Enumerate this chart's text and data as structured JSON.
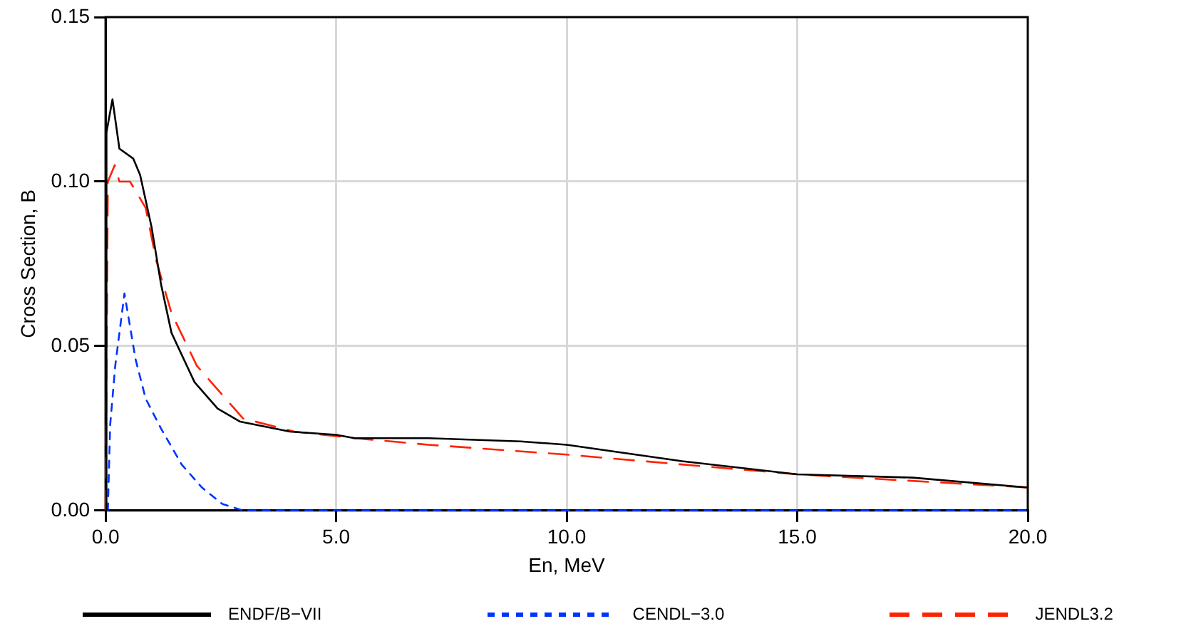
{
  "chart_data": {
    "type": "line",
    "xlabel": "En, MeV",
    "ylabel": "Cross Section, B",
    "xlim": [
      0,
      20
    ],
    "ylim": [
      0,
      0.15
    ],
    "xticks": [
      {
        "value": 0,
        "label": "0.0"
      },
      {
        "value": 5,
        "label": "5.0"
      },
      {
        "value": 10,
        "label": "10.0"
      },
      {
        "value": 15,
        "label": "15.0"
      },
      {
        "value": 20,
        "label": "20.0"
      }
    ],
    "yticks": [
      {
        "value": 0,
        "label": "0.00"
      },
      {
        "value": 0.05,
        "label": "0.05"
      },
      {
        "value": 0.1,
        "label": "0.10"
      },
      {
        "value": 0.15,
        "label": "0.15"
      }
    ],
    "grid": true,
    "legend": "bottom",
    "marker": "none",
    "series": [
      {
        "name": "ENDF/B−VII",
        "color": "#000000",
        "line_style": "solid",
        "x": [
          0,
          0.02,
          0.15,
          0.3,
          0.6,
          0.75,
          1.0,
          1.2,
          1.43,
          1.93,
          2.43,
          2.92,
          4.0,
          5.0,
          5.4,
          7.0,
          9.0,
          10.0,
          12.5,
          15.0,
          17.5,
          20.0
        ],
        "values": [
          0,
          0.115,
          0.125,
          0.11,
          0.107,
          0.102,
          0.086,
          0.069,
          0.054,
          0.039,
          0.031,
          0.027,
          0.024,
          0.023,
          0.022,
          0.022,
          0.021,
          0.02,
          0.015,
          0.011,
          0.01,
          0.007
        ]
      },
      {
        "name": "CENDL−3.0",
        "color": "#0033ff",
        "line_style": "dotted",
        "x": [
          0.05,
          0.1,
          0.21,
          0.41,
          0.65,
          0.87,
          1.2,
          1.65,
          2.09,
          2.53,
          2.98,
          20.0
        ],
        "values": [
          0,
          0.026,
          0.044,
          0.066,
          0.046,
          0.034,
          0.025,
          0.014,
          0.007,
          0.002,
          0,
          0
        ]
      },
      {
        "name": "JENDL3.2",
        "color": "#ff2200",
        "line_style": "dashed",
        "x": [
          0,
          0.05,
          0.2,
          0.3,
          0.53,
          0.87,
          1.1,
          1.43,
          1.98,
          2.98,
          4.09,
          5.4,
          7.0,
          10.0,
          12.5,
          15.0,
          20.0
        ],
        "values": [
          0,
          0.1,
          0.105,
          0.1,
          0.1,
          0.092,
          0.076,
          0.06,
          0.044,
          0.028,
          0.024,
          0.022,
          0.02,
          0.017,
          0.014,
          0.011,
          0.007
        ]
      }
    ]
  }
}
